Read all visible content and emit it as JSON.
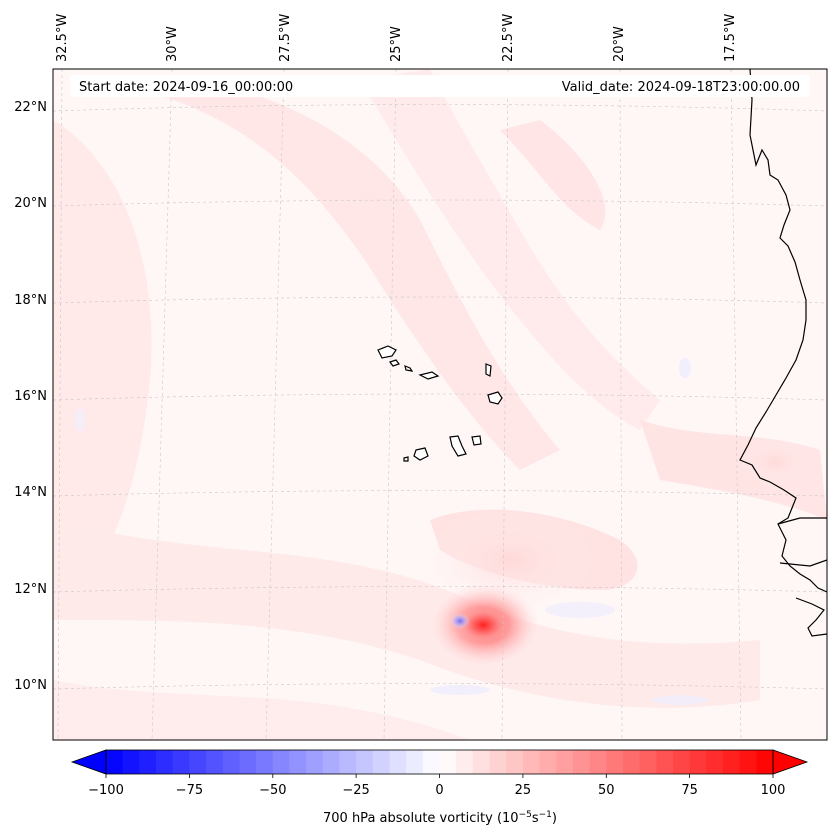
{
  "header": {
    "start_date": "Start date: 2024-09-16_00:00:00",
    "valid_date": "Valid_date: 2024-09-18T23:00:00.00"
  },
  "longitude_labels": [
    "32.5°W",
    "30°W",
    "27.5°W",
    "25°W",
    "22.5°W",
    "20°W",
    "17.5°W"
  ],
  "latitude_labels": [
    "22°N",
    "20°N",
    "18°N",
    "16°N",
    "14°N",
    "12°N",
    "10°N"
  ],
  "colorbar": {
    "ticks": [
      "−100",
      "−75",
      "−50",
      "−25",
      "0",
      "25",
      "50",
      "75",
      "100"
    ],
    "min": -100,
    "max": 100,
    "label_main": "700 hPa absolute vorticity (10",
    "label_exp1": "−5",
    "label_mid": "s",
    "label_exp2": "−1",
    "label_end": ")",
    "negative_color": "#0000ff",
    "zero_color": "#ffffff",
    "positive_color": "#ff0000"
  },
  "field": {
    "max_vorticity": 100,
    "min_vorticity": -100,
    "feature": "vorticity maximum near 11°N 22.8°W"
  }
}
